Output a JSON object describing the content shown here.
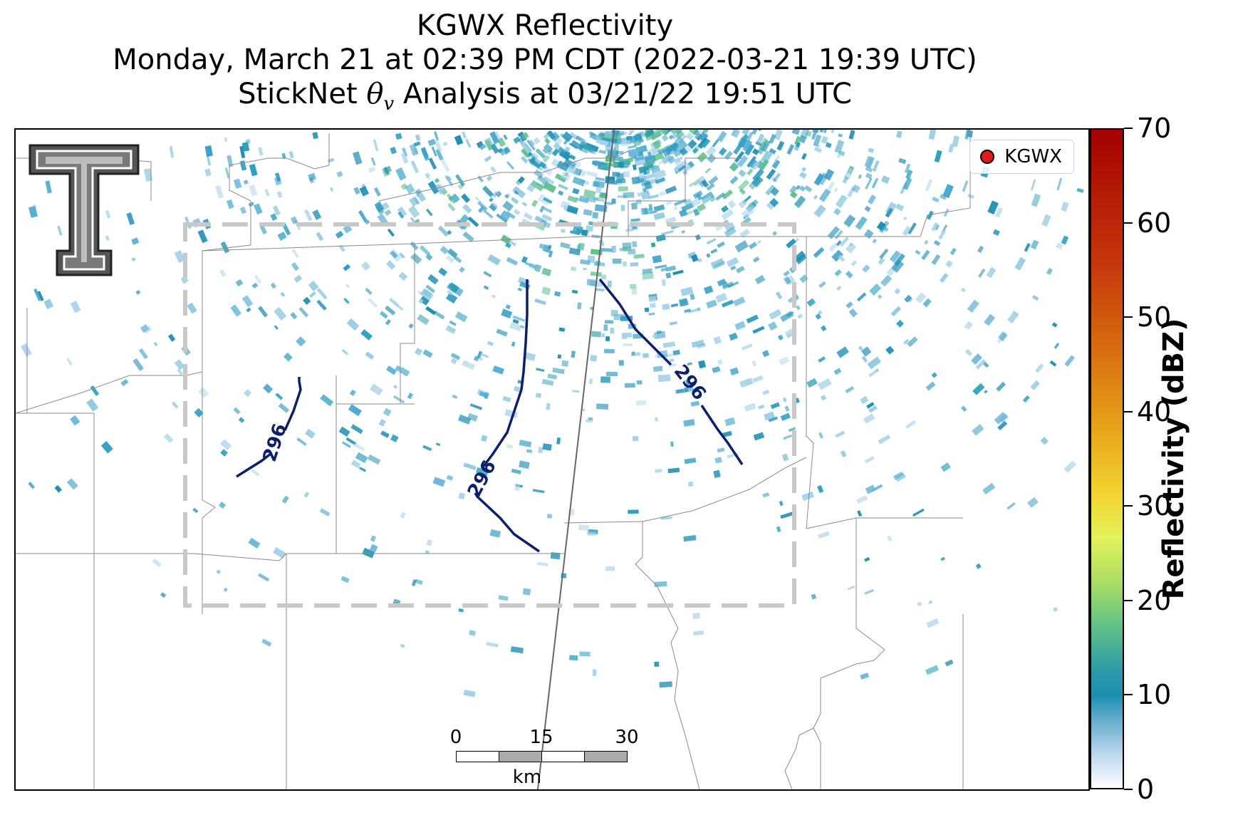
{
  "title": {
    "line1": "KGWX Reflectivity",
    "line2": "Monday, March 21 at 02:39 PM CDT (2022-03-21 19:39 UTC)",
    "line3_prefix": "StickNet ",
    "line3_symbol": "θ",
    "line3_sub": "v",
    "line3_suffix": " Analysis at 03/21/22 19:51 UTC"
  },
  "legend": {
    "label": "KGWX",
    "marker_color": "#e31a1c"
  },
  "colorbar": {
    "title": "Reflectivity (dBZ)",
    "min": 0,
    "max": 70,
    "ticks": [
      "0",
      "10",
      "20",
      "30",
      "40",
      "50",
      "60",
      "70"
    ]
  },
  "contours": [
    {
      "label": "296"
    },
    {
      "label": "296"
    },
    {
      "label": "296"
    }
  ],
  "scalebar": {
    "labels": [
      "0",
      "15",
      "30"
    ],
    "unit": "km"
  },
  "colors": {
    "contour": "#0b1f6b",
    "domain_box": "#c8c8c8",
    "radar_teal": "#1f8fb3",
    "radar_green": "#5cbf8b",
    "county_lines": "#8a8a8a"
  },
  "logo": {
    "name": "Texas Tech double-T logo"
  }
}
